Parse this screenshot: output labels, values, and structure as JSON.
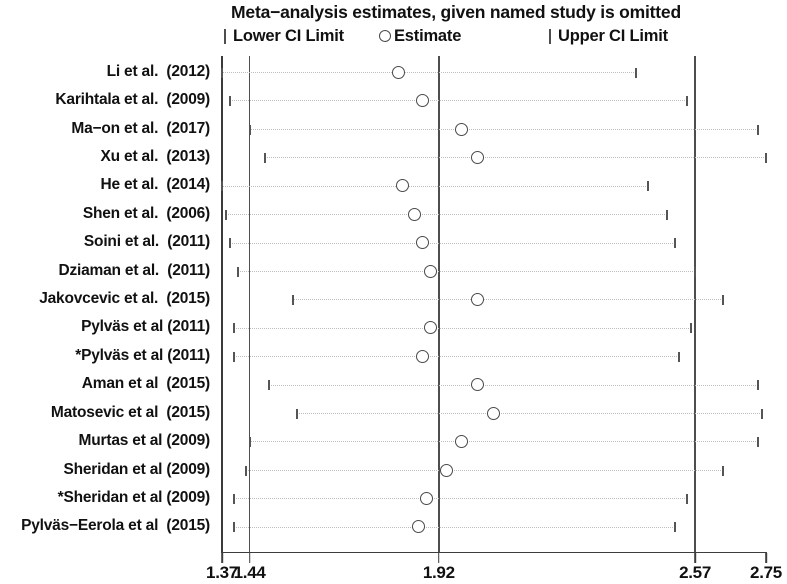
{
  "chart": {
    "title": "Meta−analysis estimates, given named study is omitted",
    "legend": {
      "lower": "Lower CI Limit",
      "estimate": "Estimate",
      "upper": "Upper CI Limit"
    }
  },
  "chart_data": {
    "type": "scatter",
    "subtype": "leave-one-out-sensitivity-forest",
    "title": "Meta−analysis estimates, given named study is omitted",
    "xlabel": "",
    "ylabel": "",
    "xlim": [
      1.37,
      2.75
    ],
    "x_ticks": [
      1.37,
      1.44,
      1.92,
      2.57,
      2.75
    ],
    "reference_lines": {
      "lower_ci": 1.44,
      "overall_estimate": 1.92,
      "upper_ci": 2.57,
      "axis_min": 1.37
    },
    "legend_entries": [
      "Lower CI Limit",
      "Estimate",
      "Upper CI Limit"
    ],
    "grid": "dotted-horizontal-per-row",
    "studies": [
      {
        "label": "Li et al.  (2012)",
        "lower": 1.37,
        "estimate": 1.82,
        "upper": 2.42
      },
      {
        "label": "Karihtala et al.  (2009)",
        "lower": 1.39,
        "estimate": 1.88,
        "upper": 2.55
      },
      {
        "label": "Ma−on et al.  (2017)",
        "lower": 1.44,
        "estimate": 1.98,
        "upper": 2.73
      },
      {
        "label": "Xu et al.  (2013)",
        "lower": 1.48,
        "estimate": 2.02,
        "upper": 2.75
      },
      {
        "label": "He et al.  (2014)",
        "lower": 1.37,
        "estimate": 1.83,
        "upper": 2.45
      },
      {
        "label": "Shen et al.  (2006)",
        "lower": 1.38,
        "estimate": 1.86,
        "upper": 2.5
      },
      {
        "label": "Soini et al.  (2011)",
        "lower": 1.39,
        "estimate": 1.88,
        "upper": 2.52
      },
      {
        "label": "Dziaman et al.  (2011)",
        "lower": 1.41,
        "estimate": 1.9,
        "upper": 2.57
      },
      {
        "label": "Jakovcevic et al.  (2015)",
        "lower": 1.55,
        "estimate": 2.02,
        "upper": 2.64
      },
      {
        "label": "Pylväs et al (2011)",
        "lower": 1.4,
        "estimate": 1.9,
        "upper": 2.56
      },
      {
        "label": "*Pylväs et al (2011)",
        "lower": 1.4,
        "estimate": 1.88,
        "upper": 2.53
      },
      {
        "label": "Aman et al  (2015)",
        "lower": 1.49,
        "estimate": 2.02,
        "upper": 2.73
      },
      {
        "label": "Matosevic et al  (2015)",
        "lower": 1.56,
        "estimate": 2.06,
        "upper": 2.74
      },
      {
        "label": "Murtas et al (2009)",
        "lower": 1.44,
        "estimate": 1.98,
        "upper": 2.73
      },
      {
        "label": "Sheridan et al (2009)",
        "lower": 1.43,
        "estimate": 1.94,
        "upper": 2.64
      },
      {
        "label": "*Sheridan et al (2009)",
        "lower": 1.4,
        "estimate": 1.89,
        "upper": 2.55
      },
      {
        "label": "Pylväs−Eerola et al  (2015)",
        "lower": 1.4,
        "estimate": 1.87,
        "upper": 2.52
      }
    ],
    "colors": {
      "text": "#111111",
      "boundary_line": "#3a3a3a",
      "reference_line": "#4e4e4e",
      "ci_tick": "#555555",
      "estimate_circle_stroke": "#4a4a4a",
      "dotted_line": "#bdbdbd",
      "background": "#ffffff"
    }
  }
}
